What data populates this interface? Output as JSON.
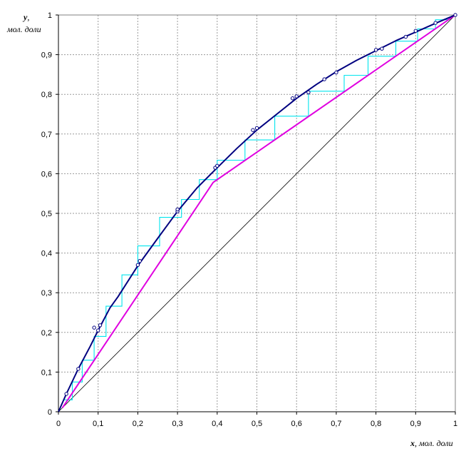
{
  "chart_data": {
    "type": "line",
    "xlabel_var": "x",
    "xlabel_unit": ", мол. доли",
    "ylabel_var": "y",
    "ylabel_sep": ",",
    "ylabel_unit": "мол. доли",
    "xlim": [
      0,
      1
    ],
    "ylim": [
      0,
      1
    ],
    "grid": true,
    "x_ticks": [
      "0",
      "0,1",
      "0,2",
      "0,3",
      "0,4",
      "0,5",
      "0,6",
      "0,7",
      "0,8",
      "0,9",
      "1"
    ],
    "y_ticks": [
      "0",
      "0,1",
      "0,2",
      "0,3",
      "0,4",
      "0,5",
      "0,6",
      "0,7",
      "0,8",
      "0,9",
      "1"
    ],
    "colors": {
      "equilibrium": "#000080",
      "operating": "#e000e0",
      "steps": "#00e5ee",
      "diagonal": "#000000",
      "grid": "#9a9a9a"
    },
    "series": [
      {
        "key": "equilibrium_curve",
        "points": [
          [
            0,
            0
          ],
          [
            0.02,
            0.045
          ],
          [
            0.05,
            0.108
          ],
          [
            0.08,
            0.165
          ],
          [
            0.1,
            0.205
          ],
          [
            0.13,
            0.262
          ],
          [
            0.15,
            0.29
          ],
          [
            0.2,
            0.368
          ],
          [
            0.25,
            0.437
          ],
          [
            0.3,
            0.505
          ],
          [
            0.35,
            0.565
          ],
          [
            0.4,
            0.615
          ],
          [
            0.45,
            0.664
          ],
          [
            0.5,
            0.71
          ],
          [
            0.55,
            0.75
          ],
          [
            0.6,
            0.79
          ],
          [
            0.65,
            0.825
          ],
          [
            0.7,
            0.857
          ],
          [
            0.75,
            0.885
          ],
          [
            0.8,
            0.91
          ],
          [
            0.85,
            0.935
          ],
          [
            0.9,
            0.957
          ],
          [
            0.95,
            0.979
          ],
          [
            1,
            1
          ]
        ]
      },
      {
        "key": "experimental_points",
        "points": [
          [
            0.02,
            0.045
          ],
          [
            0.05,
            0.108
          ],
          [
            0.09,
            0.212
          ],
          [
            0.1,
            0.205
          ],
          [
            0.105,
            0.218
          ],
          [
            0.2,
            0.37
          ],
          [
            0.205,
            0.38
          ],
          [
            0.3,
            0.505
          ],
          [
            0.3,
            0.51
          ],
          [
            0.395,
            0.615
          ],
          [
            0.4,
            0.62
          ],
          [
            0.49,
            0.71
          ],
          [
            0.5,
            0.715
          ],
          [
            0.59,
            0.79
          ],
          [
            0.6,
            0.795
          ],
          [
            0.63,
            0.805
          ],
          [
            0.67,
            0.838
          ],
          [
            0.7,
            0.855
          ],
          [
            0.8,
            0.912
          ],
          [
            0.815,
            0.915
          ],
          [
            0.875,
            0.945
          ],
          [
            0.9,
            0.96
          ],
          [
            0.95,
            0.98
          ],
          [
            1,
            1
          ]
        ]
      },
      {
        "key": "operating_line",
        "points": [
          [
            0.01,
            0.01
          ],
          [
            0.39,
            0.578
          ],
          [
            1,
            1
          ]
        ]
      },
      {
        "key": "diagonal",
        "points": [
          [
            0,
            0
          ],
          [
            1,
            1
          ]
        ]
      }
    ],
    "steps": [
      [
        0.983,
        0.988
      ],
      [
        0.95,
        0.988
      ],
      [
        0.95,
        0.965
      ],
      [
        0.905,
        0.965
      ],
      [
        0.905,
        0.934
      ],
      [
        0.85,
        0.934
      ],
      [
        0.85,
        0.896
      ],
      [
        0.78,
        0.896
      ],
      [
        0.78,
        0.848
      ],
      [
        0.72,
        0.848
      ],
      [
        0.72,
        0.808
      ],
      [
        0.63,
        0.808
      ],
      [
        0.63,
        0.745
      ],
      [
        0.545,
        0.745
      ],
      [
        0.545,
        0.685
      ],
      [
        0.47,
        0.685
      ],
      [
        0.47,
        0.634
      ],
      [
        0.4,
        0.634
      ],
      [
        0.4,
        0.585
      ],
      [
        0.355,
        0.585
      ],
      [
        0.355,
        0.535
      ],
      [
        0.31,
        0.535
      ],
      [
        0.31,
        0.49
      ],
      [
        0.255,
        0.49
      ],
      [
        0.255,
        0.418
      ],
      [
        0.2,
        0.418
      ],
      [
        0.2,
        0.345
      ],
      [
        0.16,
        0.345
      ],
      [
        0.16,
        0.266
      ],
      [
        0.12,
        0.266
      ],
      [
        0.12,
        0.19
      ],
      [
        0.09,
        0.19
      ],
      [
        0.09,
        0.13
      ],
      [
        0.06,
        0.13
      ],
      [
        0.06,
        0.075
      ],
      [
        0.035,
        0.075
      ],
      [
        0.035,
        0.03
      ],
      [
        0.015,
        0.03
      ]
    ]
  }
}
